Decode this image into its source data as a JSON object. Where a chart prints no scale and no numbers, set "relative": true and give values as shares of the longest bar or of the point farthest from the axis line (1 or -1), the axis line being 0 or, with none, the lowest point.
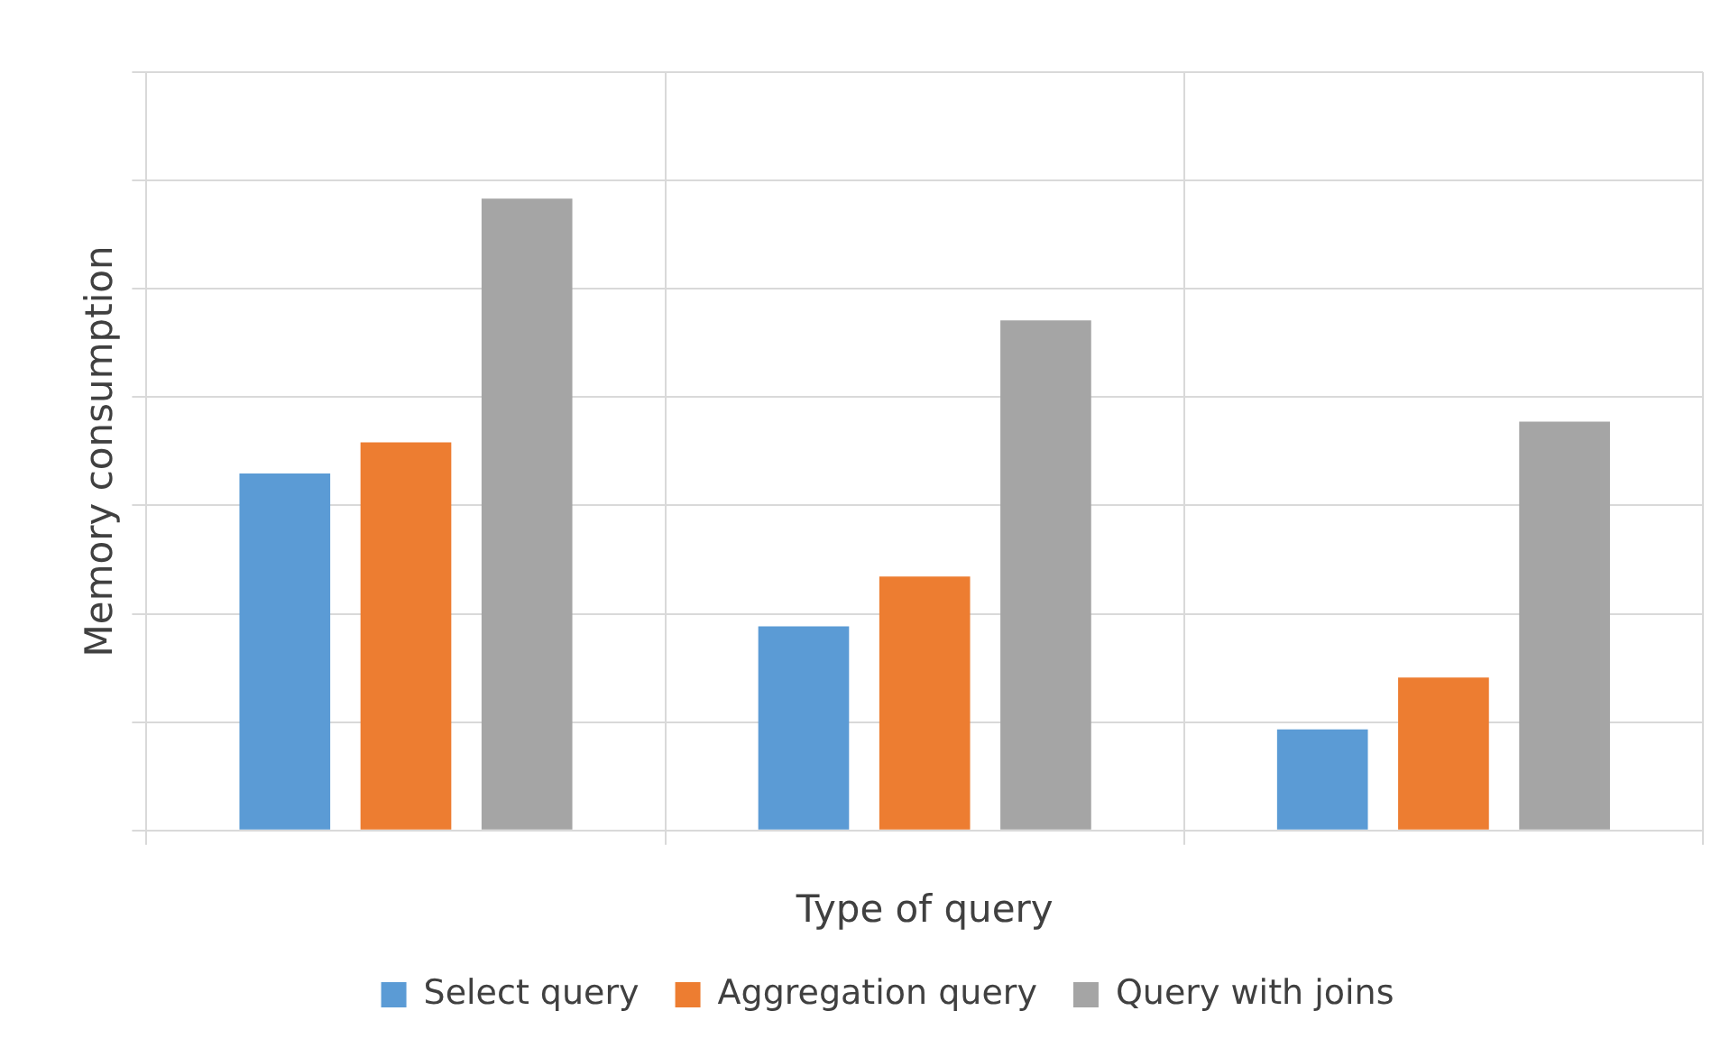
{
  "chart_data": {
    "type": "bar",
    "xlabel": "Type of query",
    "ylabel": "Memory consumption",
    "categories": [
      null,
      null,
      null
    ],
    "relative": true,
    "grid": true,
    "legend": "bottom",
    "series": [
      {
        "name": "Select query",
        "color": "#5b9bd5",
        "values": [
          0.565,
          0.323,
          0.16
        ]
      },
      {
        "name": "Aggregation query",
        "color": "#ed7d31",
        "values": [
          0.614,
          0.402,
          0.242
        ]
      },
      {
        "name": "Query with joins",
        "color": "#a5a5a5",
        "values": [
          1,
          0.807,
          0.647
        ]
      }
    ]
  }
}
